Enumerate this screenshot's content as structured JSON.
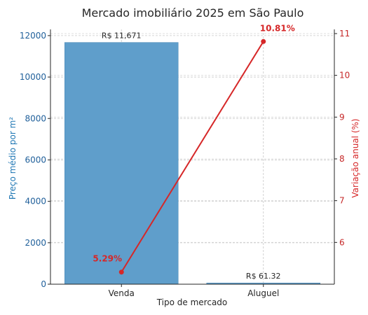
{
  "chart_data": {
    "type": "bar",
    "title": "Mercado imobiliário 2025 em São Paulo",
    "xlabel": "Tipo de mercado",
    "categories": [
      "Venda",
      "Aluguel"
    ],
    "bars": {
      "ylabel": "Preço médio por m²",
      "values": [
        11671,
        61.32
      ],
      "value_labels": [
        "R$ 11,671",
        "R$ 61.32"
      ],
      "ylim": [
        0,
        12300
      ],
      "yticks": [
        0,
        2000,
        4000,
        6000,
        8000,
        10000,
        12000
      ],
      "ytick_labels": [
        "0",
        "2000",
        "4000",
        "6000",
        "8000",
        "10000",
        "12000"
      ],
      "color": "#5f9ecb"
    },
    "line": {
      "type": "line",
      "ylabel": "Variação anual (%)",
      "values": [
        5.29,
        10.81
      ],
      "value_labels": [
        "5.29%",
        "10.81%"
      ],
      "ylim": [
        5.0,
        11.1
      ],
      "yticks": [
        6,
        7,
        8,
        9,
        10,
        11
      ],
      "ytick_labels": [
        "6",
        "7",
        "8",
        "9",
        "10",
        "11"
      ],
      "color": "#d62728",
      "axis": "right"
    },
    "grid": true
  }
}
